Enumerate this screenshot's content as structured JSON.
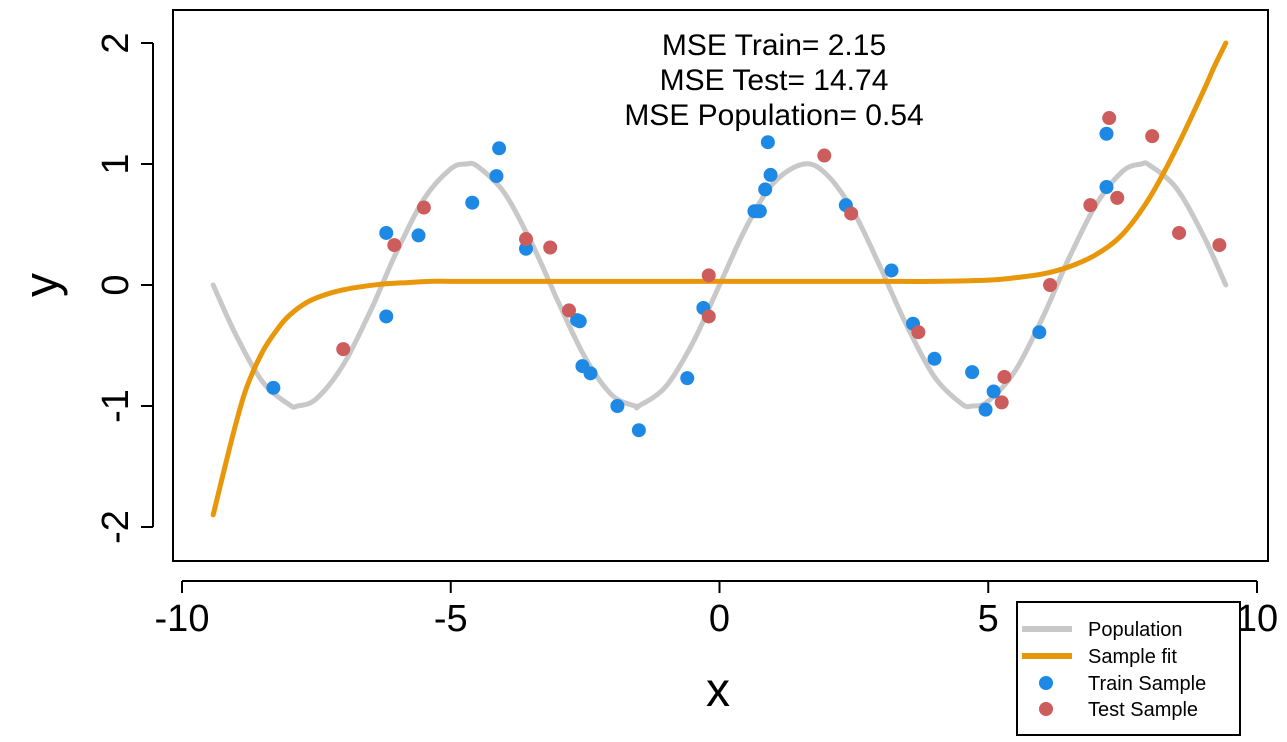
{
  "chart_data": {
    "type": "scatter",
    "title": "",
    "xlabel": "x",
    "ylabel": "y",
    "xlim": [
      -10,
      10
    ],
    "ylim": [
      -2,
      2
    ],
    "x_ticks": [
      -10,
      -5,
      0,
      5,
      10
    ],
    "y_ticks": [
      -2,
      -1,
      0,
      1,
      2
    ],
    "x_tick_labels": [
      "-10",
      "-5",
      "0",
      "5",
      "10"
    ],
    "y_tick_labels": [
      "-2",
      "-1",
      "0",
      "1",
      "2"
    ],
    "annotations": [
      "MSE Train= 2.15",
      "MSE Test= 14.74",
      "MSE Population= 0.54"
    ],
    "legend_position": "bottom-right",
    "series": [
      {
        "name": "Population",
        "kind": "line",
        "color": "#c8c8c8",
        "x": [
          -9.42,
          -9.0,
          -8.5,
          -8.0,
          -7.85,
          -7.5,
          -7.0,
          -6.5,
          -6.28,
          -6.0,
          -5.5,
          -5.0,
          -4.71,
          -4.5,
          -4.0,
          -3.5,
          -3.14,
          -3.0,
          -2.5,
          -2.0,
          -1.57,
          -1.5,
          -1.0,
          -0.5,
          0.0,
          0.5,
          1.0,
          1.57,
          2.0,
          2.5,
          3.0,
          3.14,
          3.5,
          4.0,
          4.5,
          4.71,
          5.0,
          5.5,
          6.0,
          6.28,
          6.5,
          7.0,
          7.5,
          7.85,
          8.0,
          8.5,
          9.0,
          9.42
        ],
        "values": [
          0.0,
          -0.41,
          -0.8,
          -0.99,
          -1.0,
          -0.94,
          -0.66,
          -0.22,
          0.0,
          0.28,
          0.71,
          0.96,
          1.0,
          0.98,
          0.76,
          0.35,
          0.0,
          -0.14,
          -0.6,
          -0.91,
          -1.0,
          -1.0,
          -0.84,
          -0.48,
          0.0,
          0.48,
          0.84,
          1.0,
          0.91,
          0.6,
          0.14,
          0.0,
          -0.35,
          -0.76,
          -0.98,
          -1.0,
          -0.96,
          -0.71,
          -0.28,
          0.0,
          0.22,
          0.66,
          0.94,
          1.0,
          0.99,
          0.8,
          0.41,
          0.0
        ]
      },
      {
        "name": "Sample fit",
        "kind": "line",
        "color": "#e8960a",
        "x": [
          -9.42,
          -9.2,
          -9.0,
          -8.8,
          -8.5,
          -8.2,
          -8.0,
          -7.7,
          -7.4,
          -7.0,
          -6.6,
          -6.2,
          -5.8,
          -5.4,
          -5.0,
          -4.0,
          -3.0,
          -2.0,
          -1.0,
          0.0,
          1.0,
          2.0,
          3.0,
          4.0,
          5.0,
          5.5,
          6.0,
          6.5,
          7.0,
          7.5,
          8.0,
          8.5,
          9.0,
          9.2,
          9.42
        ],
        "values": [
          -1.9,
          -1.5,
          -1.15,
          -0.85,
          -0.55,
          -0.35,
          -0.25,
          -0.15,
          -0.09,
          -0.04,
          -0.01,
          0.01,
          0.02,
          0.03,
          0.03,
          0.03,
          0.03,
          0.03,
          0.03,
          0.03,
          0.03,
          0.03,
          0.03,
          0.03,
          0.04,
          0.06,
          0.09,
          0.15,
          0.25,
          0.42,
          0.72,
          1.13,
          1.6,
          1.8,
          2.0
        ]
      },
      {
        "name": "Train Sample",
        "kind": "points",
        "color": "#1e88e5",
        "x": [
          -8.3,
          -6.2,
          -6.2,
          -5.6,
          -4.6,
          -4.15,
          -4.1,
          -3.6,
          -2.65,
          -2.6,
          -2.55,
          -2.4,
          -1.9,
          -1.5,
          -0.6,
          -0.3,
          0.65,
          0.7,
          0.75,
          0.85,
          0.9,
          0.95,
          2.35,
          3.2,
          3.6,
          4.0,
          4.7,
          4.95,
          5.1,
          5.95,
          7.2,
          7.2
        ],
        "values": [
          -0.85,
          0.43,
          -0.26,
          0.41,
          0.68,
          0.9,
          1.13,
          0.3,
          -0.29,
          -0.3,
          -0.67,
          -0.73,
          -1.0,
          -1.2,
          -0.77,
          -0.19,
          0.61,
          0.61,
          0.61,
          0.79,
          1.18,
          0.91,
          0.66,
          0.12,
          -0.32,
          -0.61,
          -0.72,
          -1.03,
          -0.88,
          -0.39,
          1.25,
          0.81
        ]
      },
      {
        "name": "Test Sample",
        "kind": "points",
        "color": "#cd5c5c",
        "x": [
          -7.0,
          -6.05,
          -5.5,
          -3.6,
          -3.15,
          -2.8,
          -0.2,
          -0.2,
          1.95,
          2.45,
          3.7,
          5.25,
          5.3,
          6.15,
          6.9,
          7.25,
          7.4,
          8.05,
          8.55,
          9.3
        ],
        "values": [
          -0.53,
          0.33,
          0.64,
          0.38,
          0.31,
          -0.21,
          0.08,
          -0.26,
          1.07,
          0.59,
          -0.39,
          -0.97,
          -0.76,
          0.0,
          0.66,
          1.38,
          0.72,
          1.23,
          0.43,
          0.33
        ]
      }
    ]
  }
}
